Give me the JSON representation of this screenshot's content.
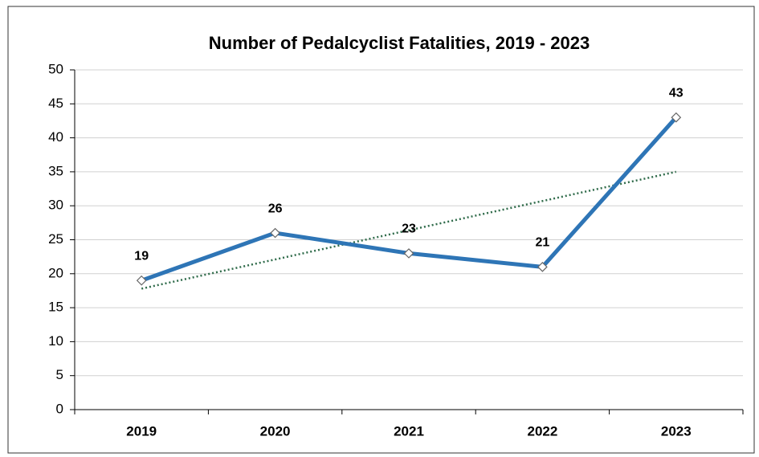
{
  "chart_data": {
    "type": "line",
    "title": "Number of Pedalcyclist Fatalities, 2019 - 2023",
    "categories": [
      "2019",
      "2020",
      "2021",
      "2022",
      "2023"
    ],
    "values": [
      19,
      26,
      23,
      21,
      43
    ],
    "color": "#2e75b6",
    "ylim": [
      0,
      50
    ],
    "yticks": [
      0,
      5,
      10,
      15,
      20,
      25,
      30,
      35,
      40,
      45,
      50
    ],
    "grid": true,
    "trendline": "linear",
    "trendline_color": "#2f6b4a"
  }
}
